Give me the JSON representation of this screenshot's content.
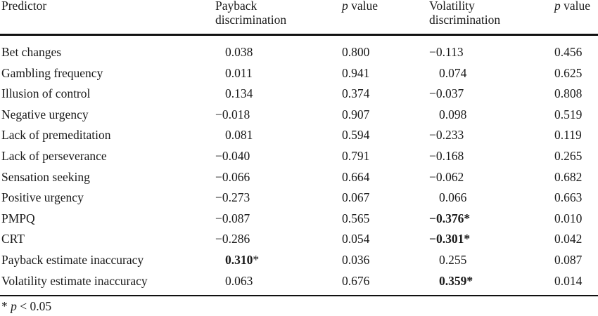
{
  "table": {
    "headers": {
      "predictor": "Predictor",
      "payback_line1": "Payback",
      "payback_line2": "discrimination",
      "p_italic": "p",
      "p_value_word": "value",
      "volatility_line1": "Volatility",
      "volatility_line2": "discrimination"
    },
    "rows": [
      {
        "predictor": "Bet changes",
        "payback": "0.038",
        "payback_star": "",
        "payback_p": "0.800",
        "volatility": "−0.113",
        "volatility_star": "",
        "volatility_p": "0.456",
        "payback_bold": false,
        "volatility_bold": false
      },
      {
        "predictor": "Gambling frequency",
        "payback": "0.011",
        "payback_star": "",
        "payback_p": "0.941",
        "volatility": "0.074",
        "volatility_star": "",
        "volatility_p": "0.625",
        "payback_bold": false,
        "volatility_bold": false
      },
      {
        "predictor": "Illusion of control",
        "payback": "0.134",
        "payback_star": "",
        "payback_p": "0.374",
        "volatility": "−0.037",
        "volatility_star": "",
        "volatility_p": "0.808",
        "payback_bold": false,
        "volatility_bold": false
      },
      {
        "predictor": "Negative urgency",
        "payback": "−0.018",
        "payback_star": "",
        "payback_p": "0.907",
        "volatility": "0.098",
        "volatility_star": "",
        "volatility_p": "0.519",
        "payback_bold": false,
        "volatility_bold": false
      },
      {
        "predictor": "Lack of premeditation",
        "payback": "0.081",
        "payback_star": "",
        "payback_p": "0.594",
        "volatility": "−0.233",
        "volatility_star": "",
        "volatility_p": "0.119",
        "payback_bold": false,
        "volatility_bold": false
      },
      {
        "predictor": "Lack of perseverance",
        "payback": "−0.040",
        "payback_star": "",
        "payback_p": "0.791",
        "volatility": "−0.168",
        "volatility_star": "",
        "volatility_p": "0.265",
        "payback_bold": false,
        "volatility_bold": false
      },
      {
        "predictor": "Sensation seeking",
        "payback": "−0.066",
        "payback_star": "",
        "payback_p": "0.664",
        "volatility": "−0.062",
        "volatility_star": "",
        "volatility_p": "0.682",
        "payback_bold": false,
        "volatility_bold": false
      },
      {
        "predictor": "Positive urgency",
        "payback": "−0.273",
        "payback_star": "",
        "payback_p": "0.067",
        "volatility": "0.066",
        "volatility_star": "",
        "volatility_p": "0.663",
        "payback_bold": false,
        "volatility_bold": false
      },
      {
        "predictor": "PMPQ",
        "payback": "−0.087",
        "payback_star": "",
        "payback_p": "0.565",
        "volatility": "−0.376",
        "volatility_star": "*",
        "volatility_p": "0.010",
        "payback_bold": false,
        "volatility_bold": true
      },
      {
        "predictor": "CRT",
        "payback": "−0.286",
        "payback_star": "",
        "payback_p": "0.054",
        "volatility": "−0.301",
        "volatility_star": "*",
        "volatility_p": "0.042",
        "payback_bold": false,
        "volatility_bold": true
      },
      {
        "predictor": "Payback estimate inaccuracy",
        "payback": "0.310",
        "payback_star": "*",
        "payback_p": "0.036",
        "volatility": "0.255",
        "volatility_star": "",
        "volatility_p": "0.087",
        "payback_bold": true,
        "volatility_bold": false
      },
      {
        "predictor": "Volatility estimate inaccuracy",
        "payback": "0.063",
        "payback_star": "",
        "payback_p": "0.676",
        "volatility": "0.359",
        "volatility_star": "*",
        "volatility_p": "0.014",
        "payback_bold": false,
        "volatility_bold": true
      }
    ],
    "footnote": {
      "star": "*",
      "p_italic": "p",
      "condition": "< 0.05"
    }
  }
}
